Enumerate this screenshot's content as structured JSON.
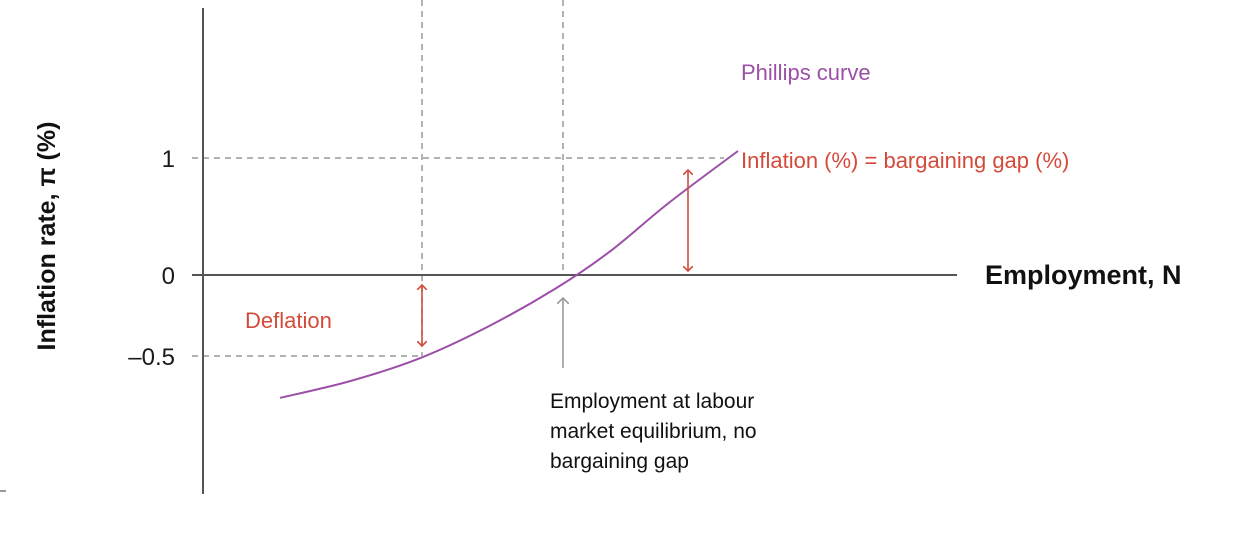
{
  "chart_data": {
    "type": "line",
    "xlabel": "Employment, N",
    "ylabel": "Inflation rate, π (%)",
    "yticks": [
      "1",
      "0",
      "–0.5"
    ],
    "y_tick_values": [
      1,
      0,
      -0.5
    ],
    "ylim": [
      -1.85,
      2.25
    ],
    "series": [
      {
        "name": "Phillips curve",
        "color": "#9b4fa6",
        "points": [
          {
            "x": 0.0,
            "y": -1.05
          },
          {
            "x": 0.15,
            "y": -0.91
          },
          {
            "x": 0.3,
            "y": -0.72
          },
          {
            "x": 0.45,
            "y": -0.45
          },
          {
            "x": 0.6,
            "y": -0.12
          },
          {
            "x": 0.72,
            "y": 0.2
          },
          {
            "x": 0.85,
            "y": 0.62
          },
          {
            "x": 1.0,
            "y": 1.06
          }
        ]
      }
    ],
    "annotations": {
      "inflation_label": "Inflation (%) = bargaining gap (%)",
      "deflation_label": "Deflation",
      "equilibrium_note": [
        "Employment at labour",
        "market equilibrium, no",
        "bargaining gap"
      ]
    },
    "colors": {
      "curve": "#9b4fa6",
      "annotation": "#d44a3a",
      "axis": "#555555",
      "guide": "#999999",
      "pointer": "#9a9a9a"
    }
  }
}
